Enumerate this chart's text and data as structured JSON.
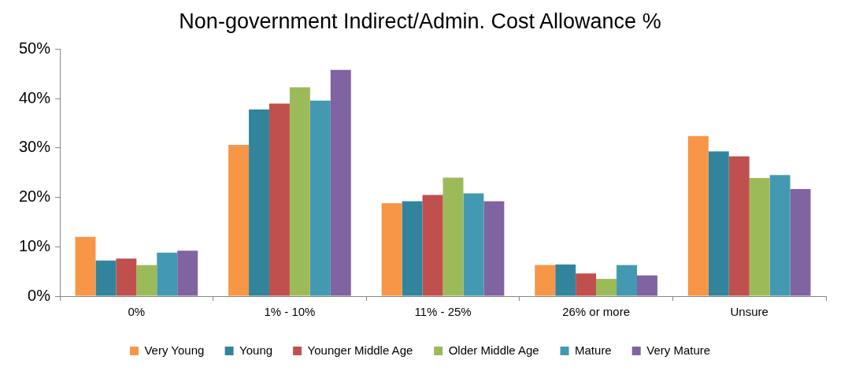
{
  "chart_data": {
    "type": "bar",
    "title": "Non-government Indirect/Admin. Cost Allowance %",
    "categories": [
      "0%",
      "1% - 10%",
      "11% - 25%",
      "26% or more",
      "Unsure"
    ],
    "series": [
      {
        "name": "Very Young",
        "color": "#f79646",
        "values": [
          12.0,
          30.6,
          18.8,
          6.3,
          32.4
        ]
      },
      {
        "name": "Young",
        "color": "#31849b",
        "values": [
          7.2,
          37.8,
          19.2,
          6.4,
          29.3
        ]
      },
      {
        "name": "Younger Middle Age",
        "color": "#c0504d",
        "values": [
          7.6,
          39.0,
          20.5,
          4.6,
          28.3
        ]
      },
      {
        "name": "Older Middle Age",
        "color": "#9bbb59",
        "values": [
          6.3,
          42.3,
          24.0,
          3.5,
          23.9
        ]
      },
      {
        "name": "Mature",
        "color": "#4399b1",
        "values": [
          8.8,
          39.6,
          20.8,
          6.3,
          24.5
        ]
      },
      {
        "name": "Very Mature",
        "color": "#8064a2",
        "values": [
          9.2,
          45.8,
          19.2,
          4.2,
          21.7
        ]
      }
    ],
    "ylim": [
      0,
      50
    ],
    "yticks": [
      {
        "value": 0,
        "label": "0%"
      },
      {
        "value": 10,
        "label": "10%"
      },
      {
        "value": 20,
        "label": "20%"
      },
      {
        "value": 30,
        "label": "30%"
      },
      {
        "value": 40,
        "label": "40%"
      },
      {
        "value": 50,
        "label": "50%"
      }
    ],
    "grid": false,
    "legend": "bottom"
  }
}
